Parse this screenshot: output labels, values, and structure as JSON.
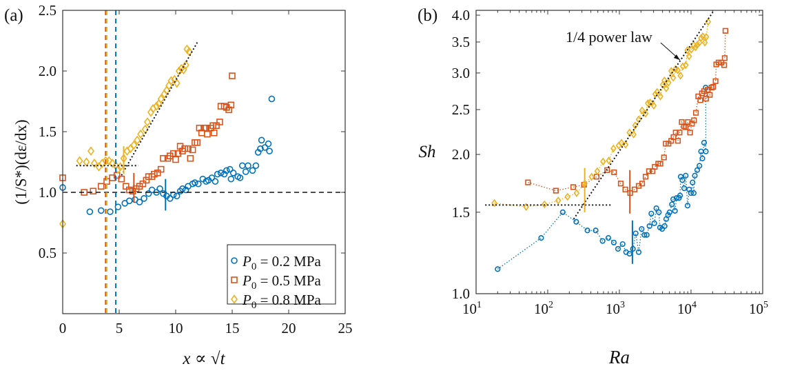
{
  "colors": {
    "s02": "#0072BD",
    "s05": "#D95319",
    "s08": "#EDB120"
  },
  "chart_data": [
    {
      "panel_label": "(a)",
      "type": "scatter",
      "xlabel": "x ∝ √t",
      "ylabel": "(1/S*)(dε/dx)",
      "xlim": [
        0,
        25
      ],
      "ylim": [
        0,
        2.5
      ],
      "xticks": [
        "0",
        "5",
        "10",
        "15",
        "20",
        "25"
      ],
      "yticks": [
        "0.5",
        "1.0",
        "1.5",
        "2.0",
        "2.5"
      ],
      "legend_position": "bottom-right",
      "series": [
        {
          "name": "P0 = 0.2 MPa",
          "legend": {
            "sym": "P",
            "sub": "0",
            "rest": " = 0.2 MPa"
          },
          "marker": "circle",
          "color": "#0072BD",
          "x": [
            0,
            2.4,
            3.4,
            4.2,
            4.9,
            5.5,
            5.9,
            6.4,
            6.8,
            7.2,
            7.6,
            7.9,
            8.3,
            8.6,
            8.9,
            9.2,
            9.5,
            9.8,
            10.1,
            10.4,
            10.6,
            10.9,
            11.1,
            11.5,
            11.7,
            12.0,
            12.4,
            12.7,
            12.9,
            13.2,
            13.5,
            13.7,
            14.0,
            14.3,
            14.5,
            14.8,
            14.9,
            15.1,
            15.5,
            15.7,
            15.9,
            16.2,
            16.4,
            16.8,
            17.1,
            17.3,
            17.5,
            17.6,
            17.9,
            18.2,
            18.3,
            18.5
          ],
          "y": [
            1.04,
            0.84,
            0.85,
            0.84,
            0.88,
            0.91,
            0.93,
            0.94,
            0.92,
            0.95,
            0.99,
            1.02,
            1.0,
            1.03,
            0.99,
            0.97,
            0.95,
            0.98,
            0.97,
            1.01,
            1.03,
            1.02,
            1.05,
            1.07,
            1.08,
            1.07,
            1.11,
            1.09,
            1.1,
            1.12,
            1.09,
            1.15,
            1.16,
            1.15,
            1.18,
            1.19,
            1.11,
            1.16,
            1.13,
            1.12,
            1.22,
            1.17,
            1.22,
            1.18,
            1.22,
            1.33,
            1.36,
            1.43,
            1.37,
            1.4,
            1.34,
            1.77
          ]
        },
        {
          "name": "P0 = 0.5 MPa",
          "legend": {
            "sym": "P",
            "sub": "0",
            "rest": " = 0.5 MPa"
          },
          "marker": "square",
          "color": "#D95319",
          "x": [
            0,
            1.9,
            2.7,
            3.4,
            3.9,
            4.4,
            4.8,
            5.2,
            5.6,
            5.9,
            6.2,
            6.5,
            6.8,
            7.1,
            7.4,
            7.6,
            7.9,
            8.1,
            8.4,
            8.7,
            8.9,
            9.3,
            9.5,
            9.8,
            10.0,
            10.2,
            10.4,
            10.6,
            10.8,
            11.1,
            11.3,
            11.5,
            11.7,
            11.9,
            12.1,
            12.3,
            12.5,
            12.7,
            12.8,
            13.1,
            13.3,
            13.4,
            13.6,
            13.9,
            14.0,
            14.3,
            14.5,
            14.7,
            14.9,
            15.0
          ],
          "y": [
            1.12,
            1.0,
            1.01,
            1.05,
            1.09,
            1.12,
            1.14,
            1.11,
            1.05,
            1.02,
            1.01,
            1.03,
            1.05,
            1.07,
            1.1,
            1.13,
            1.13,
            1.15,
            1.16,
            1.19,
            1.28,
            1.28,
            1.3,
            1.32,
            1.27,
            1.32,
            1.38,
            1.34,
            1.36,
            1.36,
            1.28,
            1.35,
            1.41,
            1.41,
            1.53,
            1.49,
            1.53,
            1.53,
            1.48,
            1.53,
            1.55,
            1.49,
            1.55,
            1.58,
            1.71,
            1.71,
            1.7,
            1.68,
            1.72,
            1.96
          ]
        },
        {
          "name": "P0 = 0.8 MPa",
          "legend": {
            "sym": "P",
            "sub": "0",
            "rest": " = 0.8 MPa"
          },
          "marker": "diamond",
          "color": "#EDB120",
          "x": [
            0,
            1.5,
            2.1,
            2.5,
            2.8,
            3.2,
            3.5,
            3.8,
            4.1,
            4.4,
            4.7,
            4.9,
            5.1,
            5.4,
            5.7,
            6.0,
            6.3,
            6.6,
            6.9,
            7.3,
            7.5,
            7.8,
            8.0,
            8.3,
            8.5,
            8.7,
            9.0,
            9.2,
            9.4,
            9.6,
            9.9,
            10.1,
            10.3,
            10.5,
            10.7,
            10.9,
            11.0,
            11.2
          ],
          "y": [
            0.74,
            1.26,
            1.25,
            1.34,
            1.24,
            1.21,
            1.24,
            1.26,
            1.26,
            1.24,
            1.22,
            1.19,
            1.21,
            1.28,
            1.34,
            1.36,
            1.39,
            1.43,
            1.48,
            1.52,
            1.58,
            1.66,
            1.69,
            1.71,
            1.73,
            1.77,
            1.81,
            1.84,
            1.88,
            1.92,
            1.93,
            1.9,
            2.0,
            2.02,
            2.01,
            2.05,
            2.18,
            2.16
          ]
        }
      ],
      "reference_lines": {
        "horizontal_dashed_y": 1.0,
        "vertical_dashed": [
          {
            "x": 3.8,
            "color": "#D95319"
          },
          {
            "x": 3.9,
            "color": "#EDB120"
          },
          {
            "x": 4.7,
            "color": "#0072BD"
          }
        ],
        "horizontal_dotted": {
          "y": 1.22,
          "x": [
            1.2,
            6.7
          ]
        },
        "fit_dotted": {
          "x": [
            5.2,
            12.0
          ],
          "y": [
            1.14,
            2.25
          ]
        }
      },
      "error_bars": [
        {
          "x": 5.4,
          "y": [
            1.15,
            1.38
          ],
          "color": "#EDB120"
        },
        {
          "x": 6.3,
          "y": [
            0.92,
            1.16
          ],
          "color": "#D95319"
        },
        {
          "x": 9.1,
          "y": [
            0.85,
            1.11
          ],
          "color": "#0072BD"
        }
      ]
    },
    {
      "panel_label": "(b)",
      "type": "line",
      "xlabel": "Ra",
      "ylabel": "Sh",
      "xscale": "log",
      "yscale": "log",
      "xlim": [
        10,
        100000
      ],
      "ylim": [
        1.0,
        4.1
      ],
      "xticks": [
        {
          "base": "10",
          "exp": "1"
        },
        {
          "base": "10",
          "exp": "2"
        },
        {
          "base": "10",
          "exp": "3"
        },
        {
          "base": "10",
          "exp": "4"
        },
        {
          "base": "10",
          "exp": "5"
        }
      ],
      "yticks": [
        "1.0",
        "1.5",
        "2.0",
        "2.5",
        "3.0",
        "3.5",
        "4.0"
      ],
      "annotation": {
        "text": "1/4 power law",
        "points_to": [
          7000,
          3.2
        ]
      },
      "series": [
        {
          "marker": "circle",
          "color": "#0072BD",
          "line": "dotted",
          "x": [
            20,
            81,
            162,
            250,
            358,
            467,
            583,
            702,
            837,
            957,
            1110,
            1240,
            1384,
            1546,
            1690,
            1860,
            2046,
            2235,
            2410,
            2630,
            2790,
            3070,
            3280,
            3560,
            3690,
            3950,
            4280,
            4500,
            4780,
            5020,
            5420,
            5640,
            5970,
            6290,
            6780,
            7030,
            7180,
            7560,
            8010,
            8430,
            8950,
            9410,
            9980,
            10500,
            10900,
            11300,
            12200,
            13100,
            13800,
            14400,
            15200,
            16100,
            16000
          ],
          "y": [
            1.13,
            1.32,
            1.5,
            1.43,
            1.37,
            1.37,
            1.3,
            1.32,
            1.29,
            1.25,
            1.28,
            1.23,
            1.22,
            1.25,
            1.35,
            1.23,
            1.38,
            1.34,
            1.34,
            1.4,
            1.49,
            1.42,
            1.53,
            1.5,
            1.39,
            1.38,
            1.4,
            1.45,
            1.48,
            1.5,
            1.56,
            1.6,
            1.51,
            1.61,
            1.61,
            1.63,
            1.79,
            1.76,
            1.69,
            1.8,
            1.55,
            1.68,
            1.65,
            1.74,
            1.65,
            1.8,
            1.85,
            1.89,
            2.03,
            1.96,
            2.12,
            2.03,
            2.79
          ]
        },
        {
          "marker": "square",
          "color": "#D95319",
          "line": "dotted",
          "x": [
            53,
            130,
            227,
            321,
            482,
            676,
            843,
            1045,
            1210,
            1415,
            1630,
            1860,
            2080,
            2320,
            2590,
            2900,
            3120,
            3480,
            3740,
            4190,
            4440,
            4850,
            5290,
            5700,
            6110,
            6570,
            6920,
            7420,
            7990,
            8420,
            9060,
            9700,
            10300,
            11000,
            11700,
            12600,
            13500,
            14200,
            15200,
            16200,
            17100,
            18300,
            19300,
            20400,
            22000,
            22500,
            24200,
            26500,
            29000,
            29500,
            30200
          ],
          "y": [
            1.74,
            1.67,
            1.7,
            1.72,
            1.79,
            1.85,
            1.83,
            1.73,
            1.68,
            1.65,
            1.68,
            1.71,
            1.73,
            1.79,
            1.84,
            1.84,
            1.88,
            1.91,
            1.91,
            1.97,
            2.11,
            2.11,
            2.14,
            2.18,
            2.23,
            2.14,
            2.23,
            2.35,
            2.3,
            2.29,
            2.35,
            2.23,
            2.33,
            2.37,
            2.46,
            2.67,
            2.62,
            2.71,
            2.74,
            2.64,
            2.76,
            2.69,
            2.79,
            2.8,
            2.88,
            3.13,
            3.16,
            3.16,
            3.12,
            3.23,
            3.7
          ]
        },
        {
          "marker": "diamond",
          "color": "#EDB120",
          "line": "dotted",
          "x": [
            18,
            50,
            90,
            140,
            189,
            253,
            328,
            410,
            492,
            592,
            712,
            826,
            978,
            1070,
            1220,
            1384,
            1580,
            1660,
            1860,
            2075,
            2320,
            2500,
            2690,
            3020,
            3170,
            3360,
            3740,
            4040,
            4250,
            4500,
            4850,
            5290,
            5630,
            6060,
            6520,
            7130,
            7680,
            8430,
            8890,
            9410,
            10100,
            10900,
            11600,
            12200,
            13100,
            13800,
            14600,
            15600,
            16300,
            17300
          ],
          "y": [
            1.57,
            1.54,
            1.56,
            1.59,
            1.62,
            1.65,
            1.73,
            1.79,
            1.84,
            1.93,
            1.94,
            2.06,
            2.09,
            2.12,
            2.1,
            2.23,
            2.21,
            2.31,
            2.38,
            2.49,
            2.45,
            2.58,
            2.59,
            2.55,
            2.7,
            2.73,
            2.67,
            2.83,
            2.89,
            2.78,
            2.86,
            3.03,
            2.93,
            3.06,
            3.04,
            2.96,
            3.1,
            3.12,
            3.36,
            3.26,
            3.37,
            3.45,
            3.41,
            3.45,
            3.49,
            3.57,
            3.6,
            3.49,
            3.59,
            3.87
          ]
        }
      ],
      "reference_lines": {
        "horizontal_dotted": {
          "y": 1.555,
          "x": [
            13.4,
            797
          ]
        },
        "power_law_dotted": {
          "x": [
            230,
            21000
          ],
          "y": [
            1.45,
            4.1
          ]
        }
      },
      "error_bars": [
        {
          "x": 328,
          "y": [
            1.5,
            1.87
          ],
          "color": "#EDB120"
        },
        {
          "x": 1400,
          "y": [
            1.49,
            1.85
          ],
          "color": "#D95319"
        },
        {
          "x": 1520,
          "y": [
            1.16,
            1.44
          ],
          "color": "#0072BD"
        }
      ]
    }
  ]
}
